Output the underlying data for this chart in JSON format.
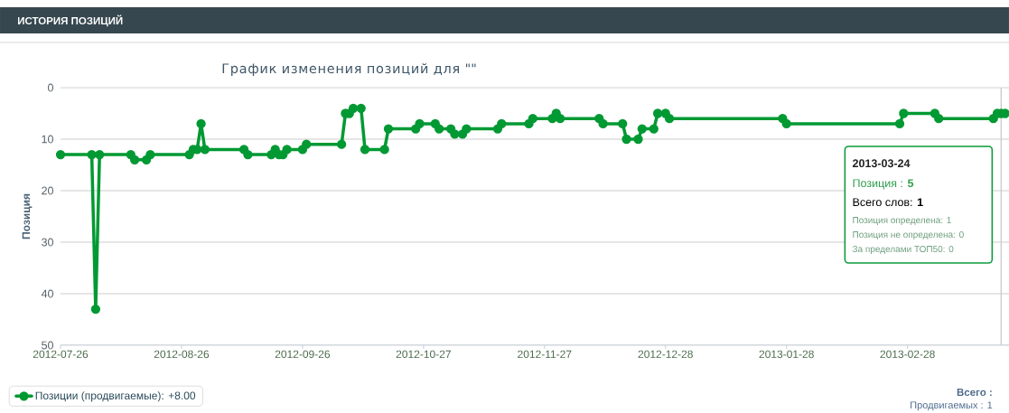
{
  "chart_data": {
    "type": "line",
    "title": "ИСТОРИЯ ПОЗИЦИЙ",
    "subtitle": "График изменения позиций для \"\"",
    "ylabel": "Позиция",
    "x": [
      "2012-07-26",
      "2012-08-03",
      "2012-08-04",
      "2012-08-05",
      "2012-08-13",
      "2012-08-14",
      "2012-08-17",
      "2012-08-18",
      "2012-08-28",
      "2012-08-29",
      "2012-08-30",
      "2012-08-31",
      "2012-09-01",
      "2012-09-11",
      "2012-09-12",
      "2012-09-18",
      "2012-09-19",
      "2012-09-20",
      "2012-09-21",
      "2012-09-22",
      "2012-09-26",
      "2012-09-27",
      "2012-10-06",
      "2012-10-07",
      "2012-10-08",
      "2012-10-09",
      "2012-10-11",
      "2012-10-12",
      "2012-10-17",
      "2012-10-18",
      "2012-10-25",
      "2012-10-26",
      "2012-10-30",
      "2012-10-31",
      "2012-11-03",
      "2012-11-04",
      "2012-11-06",
      "2012-11-07",
      "2012-11-15",
      "2012-11-16",
      "2012-11-23",
      "2012-11-24",
      "2012-11-29",
      "2012-11-30",
      "2012-12-01",
      "2012-12-11",
      "2012-12-12",
      "2012-12-17",
      "2012-12-18",
      "2012-12-21",
      "2012-12-22",
      "2012-12-25",
      "2012-12-26",
      "2012-12-28",
      "2012-12-29",
      "2013-01-27",
      "2013-01-28",
      "2013-02-26",
      "2013-02-27",
      "2013-03-07",
      "2013-03-08",
      "2013-03-22",
      "2013-03-23",
      "2013-03-24",
      "2013-03-25"
    ],
    "series": [
      {
        "name": "Позиции (продвигаемые): +8.00",
        "color": "#009933",
        "values": [
          13,
          13,
          43,
          13,
          13,
          14,
          14,
          13,
          13,
          12,
          12,
          7,
          12,
          12,
          13,
          13,
          12,
          13,
          13,
          12,
          12,
          11,
          11,
          5,
          5,
          4,
          4,
          12,
          12,
          8,
          8,
          7,
          7,
          8,
          8,
          9,
          9,
          8,
          8,
          7,
          7,
          6,
          6,
          5,
          6,
          6,
          7,
          7,
          10,
          10,
          8,
          8,
          5,
          5,
          6,
          6,
          7,
          7,
          5,
          5,
          6,
          6,
          5,
          5,
          5
        ]
      }
    ],
    "xlim": [
      "2012-07-26",
      "2013-03-26"
    ],
    "xticks": [
      "2012-07-26",
      "2012-08-26",
      "2012-09-26",
      "2012-10-27",
      "2012-11-27",
      "2012-12-28",
      "2013-01-28",
      "2013-02-28"
    ],
    "ylim": [
      50,
      0
    ],
    "yticks": [
      0,
      10,
      20,
      30,
      40,
      50
    ],
    "grid": "y",
    "legend": "bottom left",
    "marker": "circle",
    "line_style": "solid",
    "ref_lines": [
      {
        "axis": "x",
        "value": "2013-03-24",
        "color": "#cccccc"
      }
    ],
    "annotations": [
      "2013-03-24",
      "Позиция : **5**",
      "Всего слов: **1**",
      "Позиция определена: 1",
      "Позиция не определена: 0",
      "За пределами ТОП50: 0",
      "Всего :",
      "Продвигаемых : 1"
    ]
  }
}
